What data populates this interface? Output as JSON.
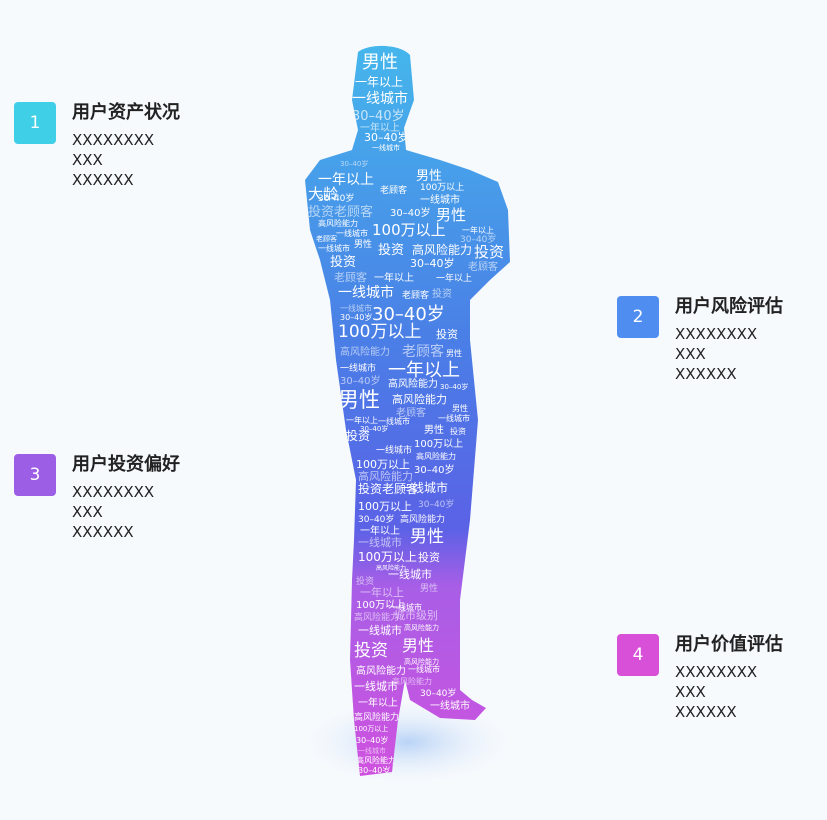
{
  "cards": [
    {
      "number": "1",
      "title": "用户资产状况",
      "lines": [
        "XXXXXXXX",
        "XXX",
        "XXXXXX"
      ],
      "color": "#3fcfe6"
    },
    {
      "number": "2",
      "title": "用户风险评估",
      "lines": [
        "XXXXXXXX",
        "XXX",
        "XXXXXX"
      ],
      "color": "#4f8ef0"
    },
    {
      "number": "3",
      "title": "用户投资偏好",
      "lines": [
        "XXXXXXXX",
        "XXX",
        "XXXXXX"
      ],
      "color": "#9d5ee6"
    },
    {
      "number": "4",
      "title": "用户价值评估",
      "lines": [
        "XXXXXXXX",
        "XXX",
        "XXXXXX"
      ],
      "color": "#d84fd8"
    }
  ],
  "word_cloud": {
    "words": [
      "男性",
      "一年以上",
      "一线城市",
      "30–40岁",
      "大龄",
      "老顾客",
      "投资老顾客",
      "100万以上",
      "高风险能力",
      "投资",
      "城市级别"
    ]
  }
}
